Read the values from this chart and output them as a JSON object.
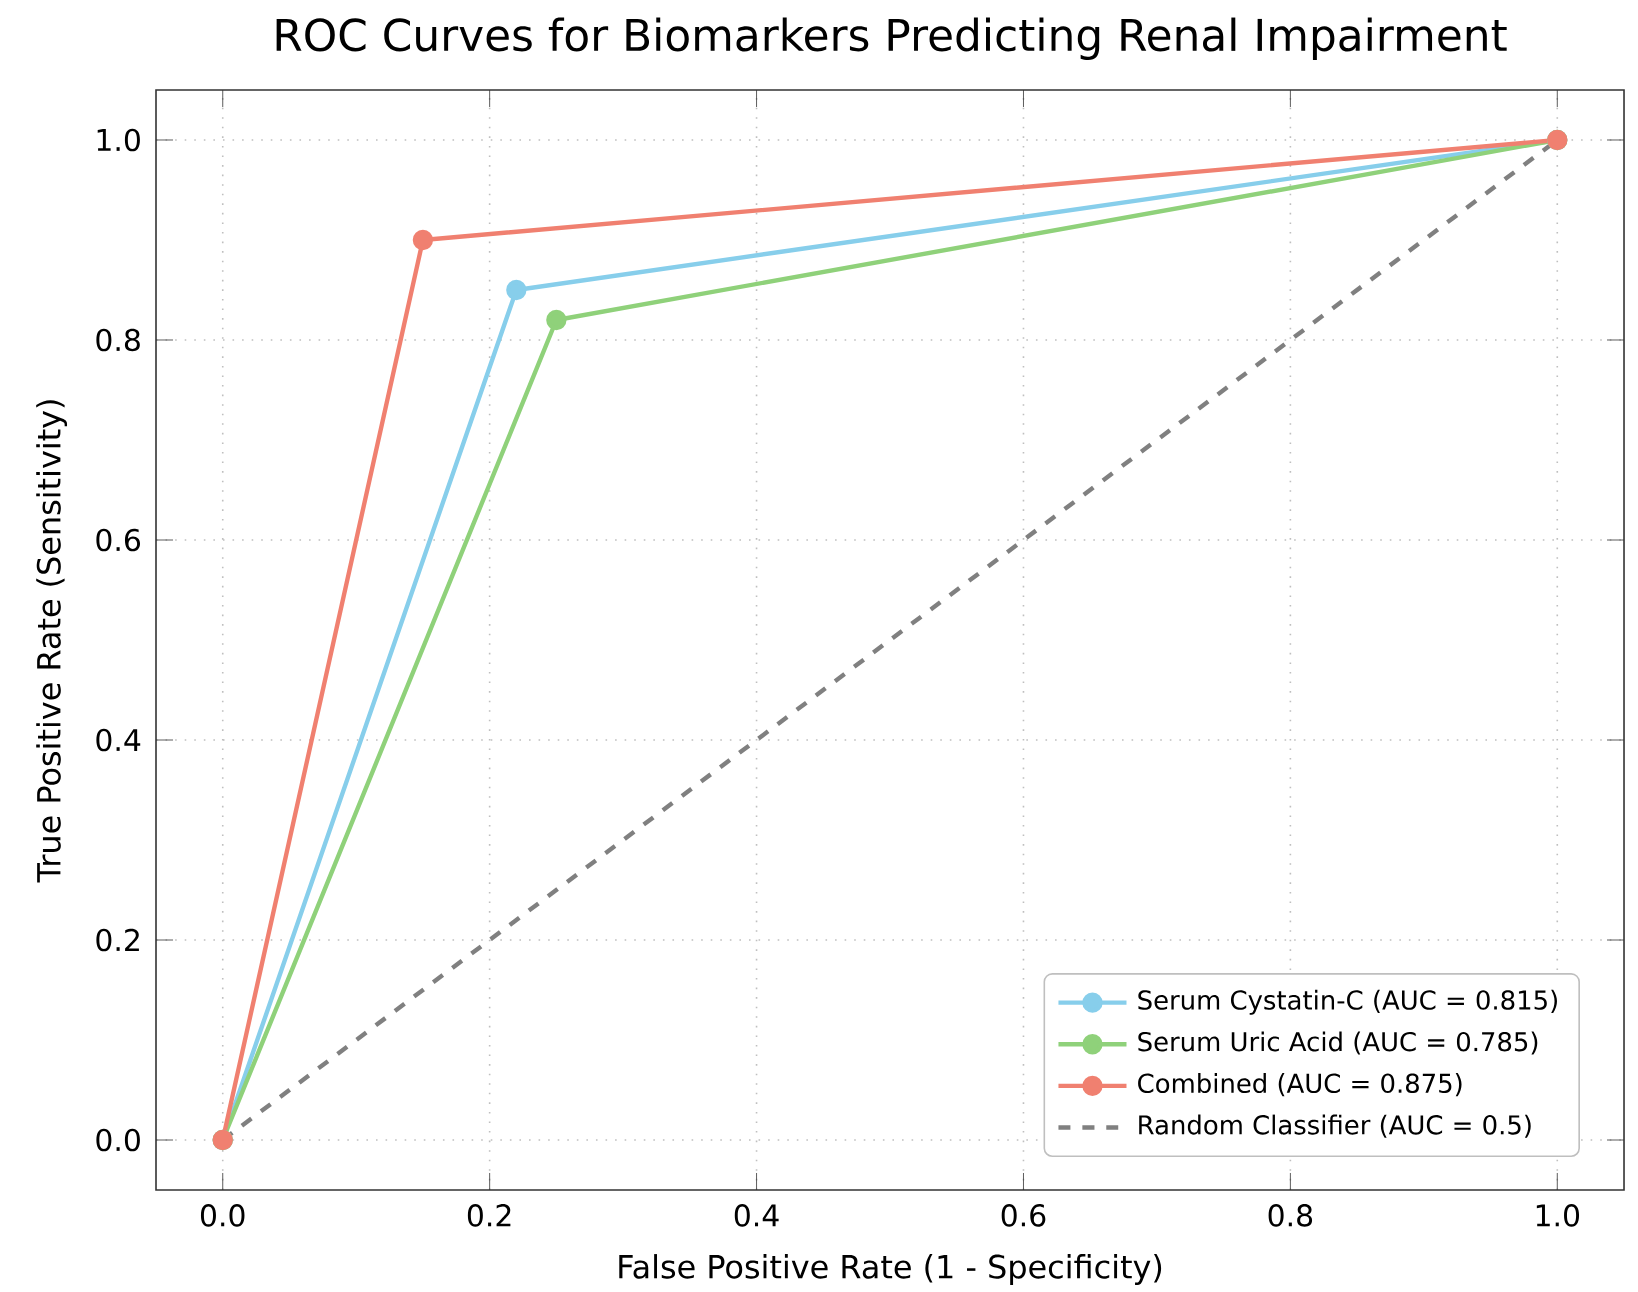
{
  "chart_data": {
    "type": "line",
    "title": "ROC Curves for Biomarkers Predicting Renal Impairment",
    "xlabel": "False Positive Rate (1 - Specificity)",
    "ylabel": "True Positive Rate (Sensitivity)",
    "xlim": [
      -0.05,
      1.05
    ],
    "ylim": [
      -0.05,
      1.05
    ],
    "xticks": [
      {
        "value": 0,
        "label": "0.0"
      },
      {
        "value": 0.2,
        "label": "0.2"
      },
      {
        "value": 0.4,
        "label": "0.4"
      },
      {
        "value": 0.6,
        "label": "0.6"
      },
      {
        "value": 0.8,
        "label": "0.8"
      },
      {
        "value": 1,
        "label": "1.0"
      }
    ],
    "yticks": [
      {
        "value": 0,
        "label": "0.0"
      },
      {
        "value": 0.2,
        "label": "0.2"
      },
      {
        "value": 0.4,
        "label": "0.4"
      },
      {
        "value": 0.6,
        "label": "0.6"
      },
      {
        "value": 0.8,
        "label": "0.8"
      },
      {
        "value": 1,
        "label": "1.0"
      }
    ],
    "grid": true,
    "legend": "bottom right",
    "marker": "circle",
    "line_style": "solid",
    "series": [
      {
        "name": "Serum Cystatin-C (AUC = 0.815)",
        "color": "#87ceeb",
        "x": [
          0,
          0.22,
          1
        ],
        "values": [
          0,
          0.85,
          1
        ]
      },
      {
        "name": "Serum Uric Acid (AUC = 0.785)",
        "color": "#8fd17a",
        "x": [
          0,
          0.25,
          1
        ],
        "values": [
          0,
          0.82,
          1
        ]
      },
      {
        "name": "Combined (AUC = 0.875)",
        "color": "#f08070",
        "x": [
          0,
          0.15,
          1
        ],
        "values": [
          0,
          0.9,
          1
        ]
      },
      {
        "name": "Random Classifier (AUC = 0.5)",
        "color": "#808080",
        "x": [
          0,
          1
        ],
        "values": [
          0,
          1
        ],
        "marker": "none",
        "line_style": "dashed"
      }
    ]
  }
}
